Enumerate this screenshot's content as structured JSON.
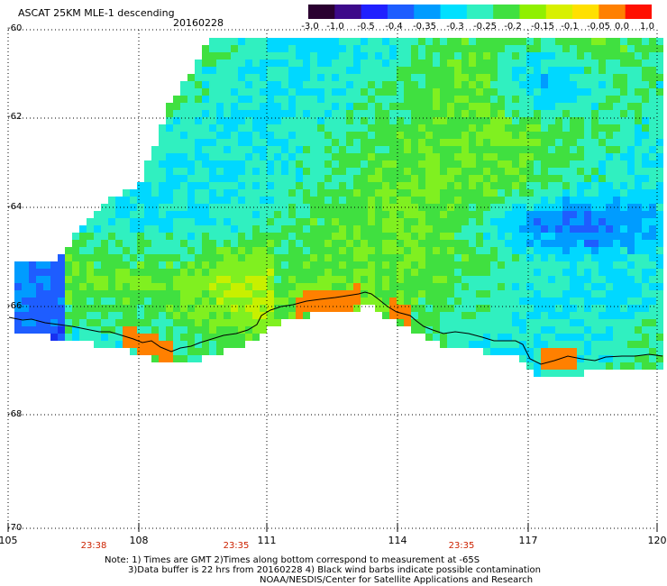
{
  "header": {
    "title": "ASCAT 25KM MLE-1 descending",
    "date": "20160228"
  },
  "colorbar": {
    "labels": [
      "-3.0",
      "-1.0",
      "-0.5",
      "-0.4",
      "-0.35",
      "-0.3",
      "-0.25",
      "-0.2",
      "-0.15",
      "-0.1",
      "-0.05",
      "0.0",
      "1.0"
    ],
    "colors": [
      "#2a0030",
      "#3d0a8a",
      "#2020ff",
      "#1e5dff",
      "#009cff",
      "#00e0ff",
      "#30f0c0",
      "#40e040",
      "#90f000",
      "#d8f000",
      "#ffe000",
      "#ff8000",
      "#ff1000"
    ]
  },
  "map": {
    "lat_labels": [
      "-60",
      "-62",
      "-64",
      "-66",
      "-68",
      "-70"
    ],
    "lon_labels": [
      "105",
      "108",
      "111",
      "114",
      "117",
      "120"
    ],
    "time_labels": [
      "23:38",
      "23:35",
      "23:35"
    ]
  },
  "footer": {
    "note1": "Note: 1) Times are GMT 2)Times along bottom correspond to measurement at -65S",
    "note2": "3)Data buffer is 22 hrs from 20160228 4) Black wind barbs indicate possible contamination",
    "note3": "NOAA/NESDIS/Center for Satellite Applications and Research"
  }
}
